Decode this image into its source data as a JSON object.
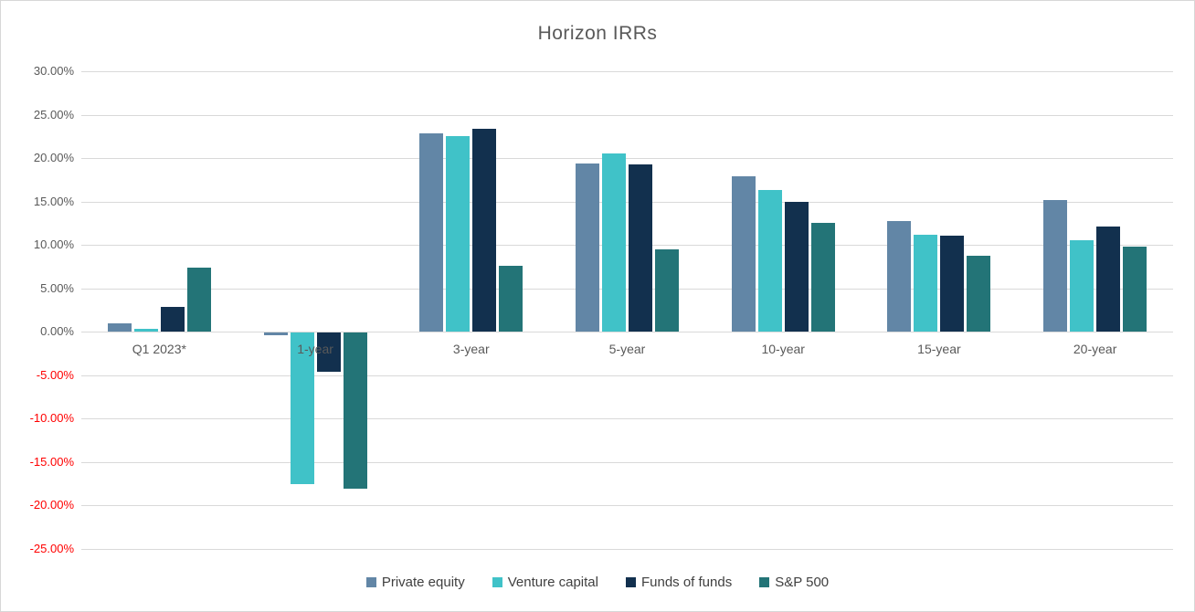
{
  "title": "Horizon IRRs",
  "chart_data": {
    "type": "bar",
    "title": "Horizon IRRs",
    "categories": [
      "Q1 2023*",
      "1-year",
      "3-year",
      "5-year",
      "10-year",
      "15-year",
      "20-year"
    ],
    "series": [
      {
        "name": "Private equity",
        "color": "#6286A6",
        "values": [
          1.0,
          -0.3,
          22.8,
          19.4,
          17.9,
          12.8,
          15.2
        ]
      },
      {
        "name": "Venture capital",
        "color": "#40C2C8",
        "values": [
          0.3,
          -17.4,
          22.5,
          20.5,
          16.3,
          11.2,
          10.5
        ]
      },
      {
        "name": "Funds of funds",
        "color": "#12304E",
        "values": [
          2.9,
          -4.5,
          23.4,
          19.3,
          15.0,
          11.1,
          12.1
        ]
      },
      {
        "name": "S&P 500",
        "color": "#237477",
        "values": [
          7.4,
          -18.0,
          7.6,
          9.5,
          12.5,
          8.8,
          9.8
        ]
      }
    ],
    "y_axis": {
      "min": -25,
      "max": 30,
      "step": 5,
      "ticks": [
        {
          "label": "30.00%",
          "value": 30
        },
        {
          "label": "25.00%",
          "value": 25
        },
        {
          "label": "20.00%",
          "value": 20
        },
        {
          "label": "15.00%",
          "value": 15
        },
        {
          "label": "10.00%",
          "value": 10
        },
        {
          "label": "5.00%",
          "value": 5
        },
        {
          "label": "0.00%",
          "value": 0
        },
        {
          "label": "-5.00%",
          "value": -5
        },
        {
          "label": "-10.00%",
          "value": -10
        },
        {
          "label": "-15.00%",
          "value": -15
        },
        {
          "label": "-20.00%",
          "value": -20
        },
        {
          "label": "-25.00%",
          "value": -25
        }
      ],
      "positive_label_color": "#595959",
      "negative_label_color": "#FF0000"
    },
    "grid": true,
    "gridline_color": "#D9D9D9",
    "legend_position": "bottom",
    "title_color": "#595959"
  }
}
